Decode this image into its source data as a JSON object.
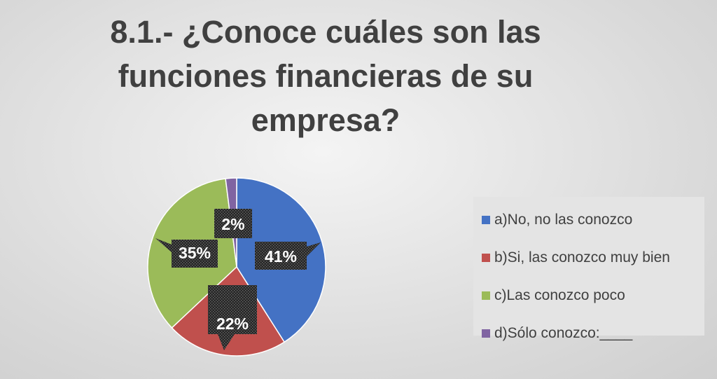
{
  "chart_data": {
    "type": "pie",
    "title": "8.1.- ¿Conoce cuáles son las funciones financieras de su empresa?",
    "title_lines": [
      "8.1.- ¿Conoce cuáles son las",
      "funciones financieras de su",
      "empresa?"
    ],
    "categories": [
      "a)No, no las conozco",
      "b)Si, las conozco muy bien",
      "c)Las conozco poco",
      "d)Sólo conozco:____"
    ],
    "values": [
      41,
      22,
      35,
      2
    ],
    "data_labels": [
      "41%",
      "22%",
      "35%",
      "2%"
    ],
    "colors": [
      "#4472c4",
      "#c0504d",
      "#9bbb59",
      "#8064a2"
    ],
    "legend_position": "right",
    "data_label_style": "callout, dark patterned box, white bold text"
  }
}
